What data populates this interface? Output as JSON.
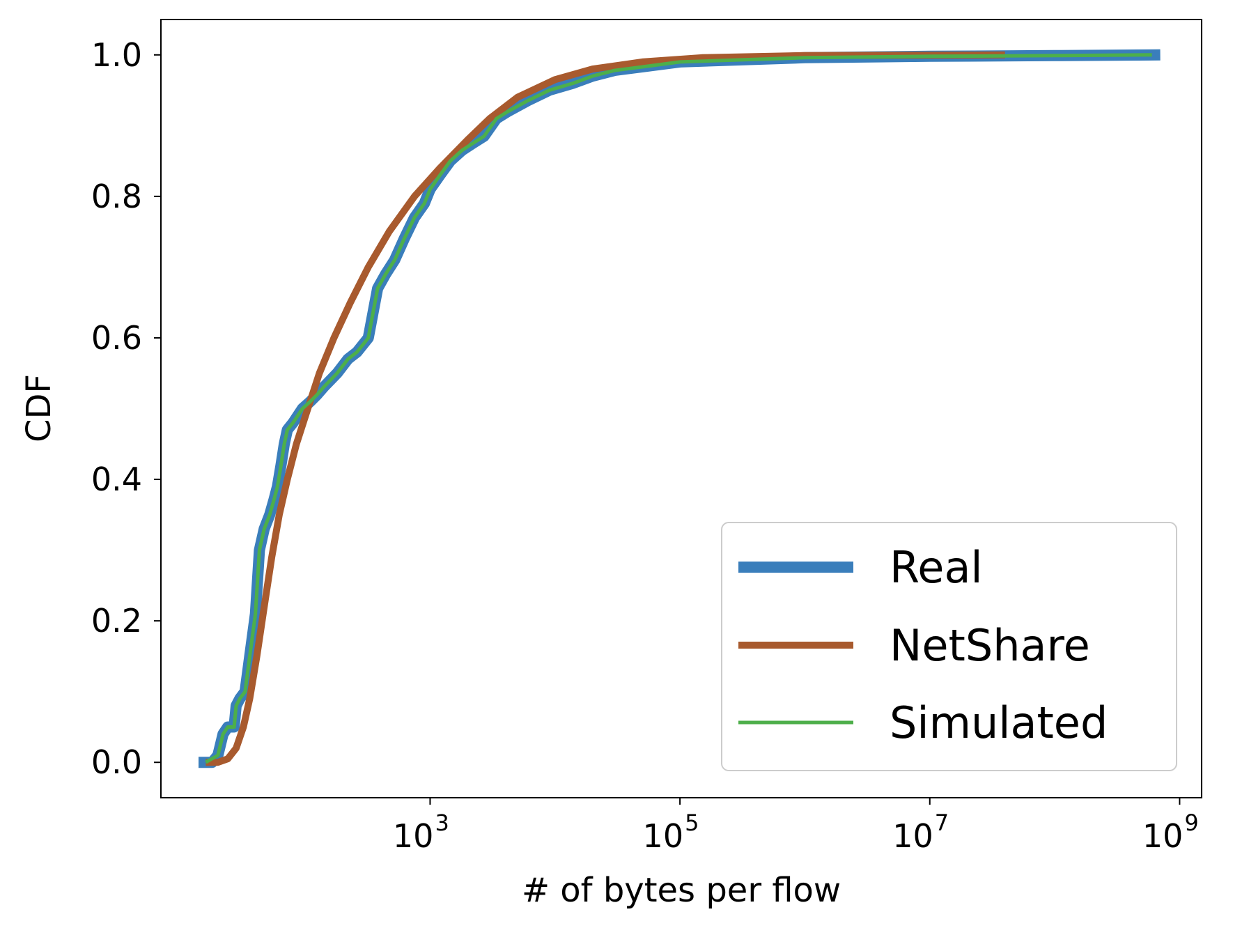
{
  "chart_data": {
    "type": "line",
    "xscale": "log",
    "xlabel": "# of bytes per flow",
    "ylabel": "CDF",
    "xlim": [
      7,
      1500000000
    ],
    "ylim": [
      -0.05,
      1.05
    ],
    "x_ticks": [
      {
        "value": 1000,
        "base": "10",
        "exp": "3"
      },
      {
        "value": 100000,
        "base": "10",
        "exp": "5"
      },
      {
        "value": 10000000,
        "base": "10",
        "exp": "7"
      },
      {
        "value": 1000000000,
        "base": "10",
        "exp": "9"
      }
    ],
    "y_ticks": [
      {
        "value": 0.0,
        "label": "0.0"
      },
      {
        "value": 0.2,
        "label": "0.2"
      },
      {
        "value": 0.4,
        "label": "0.4"
      },
      {
        "value": 0.6,
        "label": "0.6"
      },
      {
        "value": 0.8,
        "label": "0.8"
      },
      {
        "value": 1.0,
        "label": "1.0"
      }
    ],
    "grid": false,
    "legend_position": "lower right",
    "series": [
      {
        "name": "Real",
        "color": "#3a7ebb",
        "width": "thick",
        "points": [
          [
            14,
            0.0
          ],
          [
            18,
            0.0
          ],
          [
            20,
            0.01
          ],
          [
            22,
            0.04
          ],
          [
            24,
            0.05
          ],
          [
            27,
            0.05
          ],
          [
            28,
            0.08
          ],
          [
            30,
            0.09
          ],
          [
            33,
            0.1
          ],
          [
            36,
            0.15
          ],
          [
            40,
            0.21
          ],
          [
            43,
            0.3
          ],
          [
            47,
            0.33
          ],
          [
            52,
            0.35
          ],
          [
            56,
            0.37
          ],
          [
            60,
            0.39
          ],
          [
            64,
            0.42
          ],
          [
            68,
            0.45
          ],
          [
            72,
            0.47
          ],
          [
            80,
            0.48
          ],
          [
            95,
            0.5
          ],
          [
            110,
            0.51
          ],
          [
            125,
            0.52
          ],
          [
            140,
            0.53
          ],
          [
            180,
            0.55
          ],
          [
            220,
            0.57
          ],
          [
            260,
            0.58
          ],
          [
            320,
            0.6
          ],
          [
            380,
            0.67
          ],
          [
            440,
            0.69
          ],
          [
            520,
            0.71
          ],
          [
            620,
            0.74
          ],
          [
            750,
            0.77
          ],
          [
            900,
            0.79
          ],
          [
            1000,
            0.81
          ],
          [
            1200,
            0.83
          ],
          [
            1450,
            0.85
          ],
          [
            1800,
            0.865
          ],
          [
            2200,
            0.875
          ],
          [
            2700,
            0.885
          ],
          [
            3100,
            0.9
          ],
          [
            3400,
            0.91
          ],
          [
            4200,
            0.92
          ],
          [
            6000,
            0.935
          ],
          [
            9000,
            0.95
          ],
          [
            14000,
            0.96
          ],
          [
            20000,
            0.97
          ],
          [
            30000,
            0.978
          ],
          [
            50000,
            0.983
          ],
          [
            100000,
            0.99
          ],
          [
            1000000,
            0.996
          ],
          [
            10000000,
            0.998
          ],
          [
            100000000,
            0.999
          ],
          [
            700000000,
            1.0
          ]
        ]
      },
      {
        "name": "NetShare",
        "color": "#a85a2e",
        "width": "medium",
        "points": [
          [
            16,
            0.0
          ],
          [
            20,
            0.0
          ],
          [
            24,
            0.005
          ],
          [
            28,
            0.02
          ],
          [
            32,
            0.05
          ],
          [
            36,
            0.09
          ],
          [
            41,
            0.15
          ],
          [
            47,
            0.22
          ],
          [
            54,
            0.29
          ],
          [
            62,
            0.35
          ],
          [
            72,
            0.4
          ],
          [
            85,
            0.45
          ],
          [
            105,
            0.5
          ],
          [
            130,
            0.55
          ],
          [
            170,
            0.6
          ],
          [
            230,
            0.65
          ],
          [
            320,
            0.7
          ],
          [
            470,
            0.75
          ],
          [
            750,
            0.8
          ],
          [
            1200,
            0.84
          ],
          [
            2000,
            0.88
          ],
          [
            3000,
            0.91
          ],
          [
            5000,
            0.94
          ],
          [
            10000,
            0.965
          ],
          [
            20000,
            0.98
          ],
          [
            50000,
            0.99
          ],
          [
            150000,
            0.996
          ],
          [
            1000000,
            0.999
          ],
          [
            40000000,
            1.0
          ]
        ]
      },
      {
        "name": "Simulated",
        "color": "#4daf4a",
        "width": "thin",
        "points": [
          [
            16,
            0.0
          ],
          [
            20,
            0.01
          ],
          [
            22,
            0.04
          ],
          [
            24,
            0.05
          ],
          [
            27,
            0.05
          ],
          [
            28,
            0.08
          ],
          [
            30,
            0.09
          ],
          [
            33,
            0.1
          ],
          [
            36,
            0.15
          ],
          [
            40,
            0.21
          ],
          [
            43,
            0.3
          ],
          [
            47,
            0.33
          ],
          [
            52,
            0.35
          ],
          [
            56,
            0.37
          ],
          [
            60,
            0.39
          ],
          [
            64,
            0.42
          ],
          [
            68,
            0.45
          ],
          [
            72,
            0.47
          ],
          [
            80,
            0.48
          ],
          [
            95,
            0.5
          ],
          [
            110,
            0.51
          ],
          [
            125,
            0.52
          ],
          [
            140,
            0.53
          ],
          [
            180,
            0.55
          ],
          [
            220,
            0.57
          ],
          [
            260,
            0.58
          ],
          [
            320,
            0.6
          ],
          [
            380,
            0.67
          ],
          [
            440,
            0.69
          ],
          [
            520,
            0.71
          ],
          [
            620,
            0.74
          ],
          [
            750,
            0.77
          ],
          [
            900,
            0.79
          ],
          [
            1000,
            0.81
          ],
          [
            1200,
            0.83
          ],
          [
            1450,
            0.85
          ],
          [
            1800,
            0.865
          ],
          [
            2200,
            0.875
          ],
          [
            2700,
            0.885
          ],
          [
            3100,
            0.9
          ],
          [
            3400,
            0.91
          ],
          [
            4200,
            0.92
          ],
          [
            6000,
            0.935
          ],
          [
            9000,
            0.95
          ],
          [
            14000,
            0.96
          ],
          [
            20000,
            0.97
          ],
          [
            30000,
            0.978
          ],
          [
            50000,
            0.983
          ],
          [
            100000,
            0.99
          ],
          [
            1000000,
            0.996
          ],
          [
            10000000,
            0.998
          ],
          [
            100000000,
            0.999
          ],
          [
            600000000,
            1.0
          ]
        ]
      }
    ]
  }
}
